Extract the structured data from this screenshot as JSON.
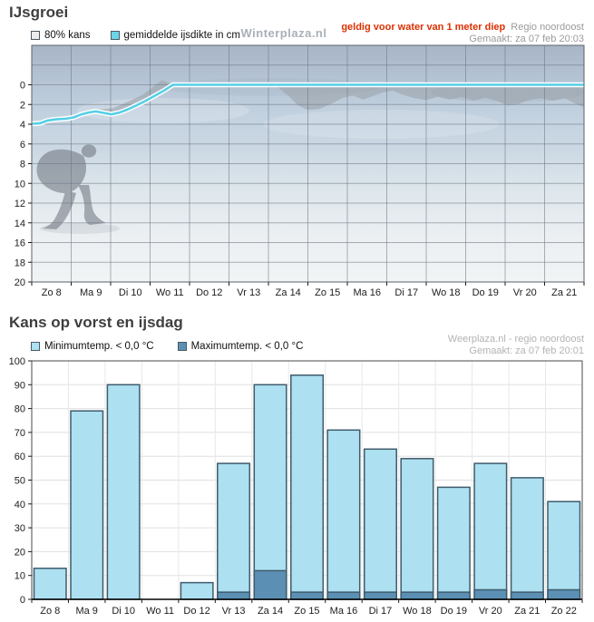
{
  "chart_data": [
    {
      "type": "line",
      "title": "IJsgroei",
      "watermark": "Winterplaza.nl",
      "validity_note": "geldig voor water van 1 meter diep",
      "region_note": "Regio noordoost",
      "generated_note": "Gemaakt: za 07 feb 20:03",
      "legend": [
        {
          "label": "80% kans",
          "color": "#ececec"
        },
        {
          "label": "gemiddelde ijsdikte in cm",
          "color": "#6ed3e8"
        }
      ],
      "x_categories": [
        "Zo 8",
        "Ma 9",
        "Di 10",
        "Wo 11",
        "Do 12",
        "Vr 13",
        "Za 14",
        "Zo 15",
        "Ma 16",
        "Di 17",
        "Wo 18",
        "Do 19",
        "Vr 20",
        "Za 21"
      ],
      "ylim": [
        -4,
        20
      ],
      "y_ticks": [
        0,
        2,
        4,
        6,
        8,
        10,
        12,
        14,
        16,
        18,
        20
      ],
      "y_unit": "ijsdikte in cm (0 = wateroppervlak)",
      "line_color": "#55cfe6",
      "band_color": "#99a0a8",
      "line": {
        "name": "gemiddelde ijsdikte in cm",
        "x": [
          0,
          0.22,
          0.4,
          0.62,
          0.85,
          1.05,
          1.25,
          1.45,
          1.62,
          1.82,
          2.02,
          2.22,
          2.42,
          2.65,
          2.9,
          3.15,
          3.35,
          3.5,
          3.58,
          14
        ],
        "y": [
          3.95,
          3.9,
          3.62,
          3.5,
          3.45,
          3.32,
          3.02,
          2.8,
          2.7,
          2.85,
          3.0,
          2.82,
          2.52,
          2.1,
          1.6,
          1.05,
          0.6,
          0.2,
          0,
          0
        ]
      },
      "band80_polygons": [
        [
          [
            1.55,
            2.62
          ],
          [
            1.8,
            2.47
          ],
          [
            2.05,
            2.37
          ],
          [
            2.3,
            1.97
          ],
          [
            2.55,
            1.52
          ],
          [
            2.8,
            1.02
          ],
          [
            3.0,
            0.47
          ],
          [
            3.15,
            -0.08
          ],
          [
            3.3,
            -0.45
          ],
          [
            3.45,
            -0.25
          ],
          [
            3.58,
            -0.02
          ],
          [
            3.58,
            0.12
          ],
          [
            3.4,
            0.57
          ],
          [
            3.2,
            1.07
          ],
          [
            3.0,
            1.57
          ],
          [
            2.8,
            2.02
          ],
          [
            2.6,
            2.42
          ],
          [
            2.4,
            2.82
          ],
          [
            2.2,
            3.12
          ],
          [
            2.0,
            3.22
          ],
          [
            1.8,
            3.12
          ],
          [
            1.62,
            2.87
          ]
        ],
        [
          [
            6.25,
            0.08
          ],
          [
            14,
            0.08
          ],
          [
            14,
            2.3
          ],
          [
            13.75,
            1.85
          ],
          [
            13.5,
            1.35
          ],
          [
            13.2,
            1.62
          ],
          [
            12.9,
            1.35
          ],
          [
            12.6,
            1.55
          ],
          [
            12.3,
            2.0
          ],
          [
            12.05,
            2.1
          ],
          [
            11.8,
            1.65
          ],
          [
            11.5,
            1.3
          ],
          [
            11.2,
            1.6
          ],
          [
            10.9,
            1.25
          ],
          [
            10.6,
            1.5
          ],
          [
            10.3,
            1.2
          ],
          [
            10.0,
            1.55
          ],
          [
            9.7,
            1.35
          ],
          [
            9.4,
            1.0
          ],
          [
            9.15,
            0.6
          ],
          [
            8.9,
            0.75
          ],
          [
            8.65,
            1.15
          ],
          [
            8.4,
            1.5
          ],
          [
            8.15,
            1.1
          ],
          [
            7.9,
            1.3
          ],
          [
            7.6,
            1.9
          ],
          [
            7.3,
            2.45
          ],
          [
            7.0,
            2.55
          ],
          [
            6.75,
            2.1
          ],
          [
            6.5,
            1.1
          ],
          [
            6.25,
            0.3
          ]
        ]
      ]
    },
    {
      "type": "bar",
      "title": "Kans op vorst en ijsdag",
      "source_note": "Weerplaza.nl - regio noordoost",
      "generated_note": "Gemaakt: za 07 feb 20:01",
      "legend": [
        {
          "label": "Minimumtemp. < 0,0 °C",
          "color": "#ade0f0"
        },
        {
          "label": "Maximumtemp. < 0,0 °C",
          "color": "#5b90b4"
        }
      ],
      "categories": [
        "Zo 8",
        "Ma 9",
        "Di 10",
        "Wo 11",
        "Do 12",
        "Vr 13",
        "Za 14",
        "Zo 15",
        "Ma 16",
        "Di 17",
        "Wo 18",
        "Do 19",
        "Vr 20",
        "Za 21",
        "Zo 22"
      ],
      "series": [
        {
          "name": "Minimumtemp. < 0,0 °C",
          "color": "#ade0f0",
          "values": [
            13,
            79,
            90,
            0,
            7,
            57,
            90,
            94,
            71,
            63,
            59,
            47,
            57,
            51,
            41
          ]
        },
        {
          "name": "Maximumtemp. < 0,0 °C",
          "color": "#5b90b4",
          "values": [
            0,
            0,
            0,
            0,
            0,
            3,
            12,
            3,
            3,
            3,
            3,
            3,
            4,
            3,
            4
          ]
        }
      ],
      "ylim": [
        0,
        100
      ],
      "y_tick_step": 10
    }
  ]
}
